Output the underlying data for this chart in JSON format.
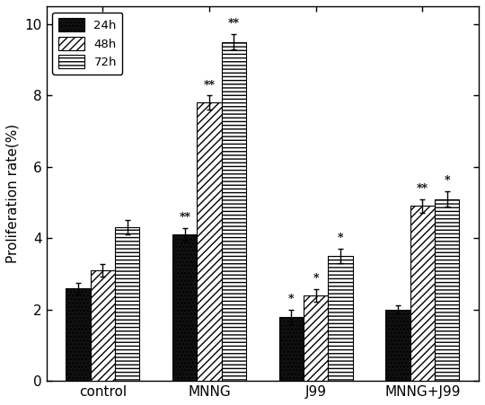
{
  "categories": [
    "control",
    "MNNG",
    "J99",
    "MNNG+J99"
  ],
  "series": {
    "24h": [
      2.6,
      4.1,
      1.8,
      2.0
    ],
    "48h": [
      3.1,
      7.8,
      2.4,
      4.9
    ],
    "72h": [
      4.3,
      9.5,
      3.5,
      5.1
    ]
  },
  "errors": {
    "24h": [
      0.15,
      0.18,
      0.2,
      0.12
    ],
    "48h": [
      0.18,
      0.2,
      0.18,
      0.2
    ],
    "72h": [
      0.2,
      0.22,
      0.2,
      0.22
    ]
  },
  "significance": {
    "24h": [
      "",
      "**",
      "*",
      ""
    ],
    "48h": [
      "",
      "**",
      "*",
      "**"
    ],
    "72h": [
      "",
      "**",
      "*",
      "*"
    ]
  },
  "bar_colors": [
    "#111111",
    "#ffffff",
    "#ffffff"
  ],
  "bar_hatches": [
    "....",
    "////",
    "----"
  ],
  "bar_edgecolors": [
    "#000000",
    "#000000",
    "#000000"
  ],
  "legend_labels": [
    "24h",
    "48h",
    "72h"
  ],
  "ylabel": "Proliferation rate(%)",
  "ylim": [
    0,
    10.5
  ],
  "yticks": [
    0,
    2,
    4,
    6,
    8,
    10
  ],
  "bar_width": 0.23,
  "fig_width": 5.4,
  "fig_height": 4.51,
  "dpi": 100,
  "label_font_size": 11,
  "sig_font_size": 9
}
